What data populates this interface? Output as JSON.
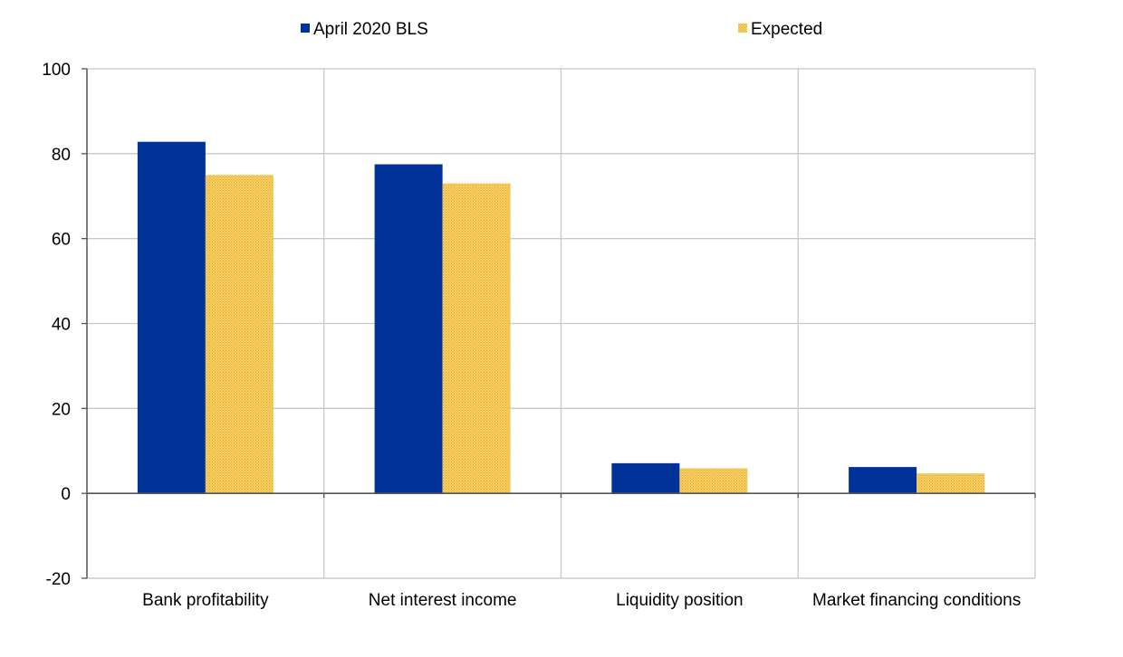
{
  "chart_data": {
    "type": "bar",
    "categories": [
      "Bank profitability",
      "Net interest income",
      "Liquidity position",
      "Market financing conditions"
    ],
    "series": [
      {
        "name": "April 2020 BLS",
        "values": [
          82.8,
          77.5,
          7.1,
          6.2
        ],
        "color": "#003299",
        "pattern": "solid"
      },
      {
        "name": "Expected",
        "values": [
          75.0,
          73.0,
          5.9,
          4.7
        ],
        "color": "#ffb400",
        "pattern": "dotted"
      }
    ],
    "ylim": [
      -20,
      100
    ],
    "yticks": [
      100,
      80,
      60,
      40,
      20,
      0,
      -20
    ],
    "ytick_labels": [
      "100",
      "80",
      "60",
      "40",
      "20",
      "0",
      "-20"
    ],
    "grid": true,
    "legend_position": "top"
  }
}
